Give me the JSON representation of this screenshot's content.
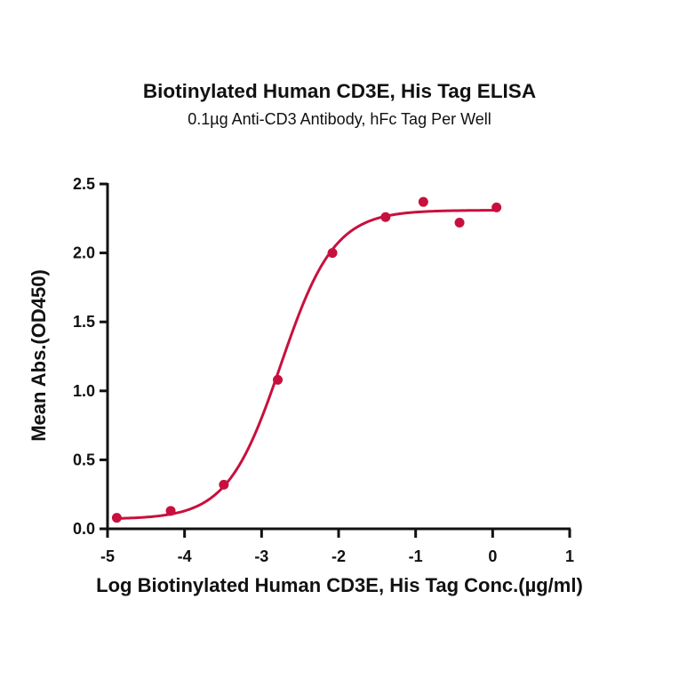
{
  "chart": {
    "title": "Biotinylated Human CD3E, His Tag ELISA",
    "subtitle": "0.1µg Anti-CD3 Antibody, hFc Tag Per Well",
    "xlabel": "Log Biotinylated Human CD3E, His Tag Conc.(µg/ml)",
    "ylabel": "Mean Abs.(OD450)",
    "color": "#c8103e"
  },
  "chart_data": {
    "type": "scatter",
    "title": "Biotinylated Human CD3E, His Tag ELISA",
    "subtitle": "0.1µg Anti-CD3 Antibody, hFc Tag Per Well",
    "xlabel": "Log Biotinylated Human CD3E, His Tag Conc.(µg/ml)",
    "ylabel": "Mean Abs.(OD450)",
    "xlim": [
      -5,
      1
    ],
    "ylim": [
      0,
      2.5
    ],
    "xticks": [
      "-5",
      "-4",
      "-3",
      "-2",
      "-1",
      "0",
      "1"
    ],
    "yticks": [
      "0.0",
      "0.5",
      "1.0",
      "1.5",
      "2.0",
      "2.5"
    ],
    "grid": false,
    "legend": null,
    "series": [
      {
        "name": "Mean Abs.(OD450)",
        "color": "#c8103e",
        "x": [
          -4.88,
          -4.18,
          -3.49,
          -2.79,
          -2.08,
          -1.39,
          -0.9,
          -0.43,
          0.05
        ],
        "y": [
          0.08,
          0.13,
          0.32,
          1.08,
          2.0,
          2.26,
          2.37,
          2.22,
          2.33
        ],
        "fit": "4-parameter logistic",
        "fit_params": {
          "bottom": 0.07,
          "top": 2.31,
          "log_ec50": -2.75,
          "hill": 1.25
        }
      }
    ]
  }
}
